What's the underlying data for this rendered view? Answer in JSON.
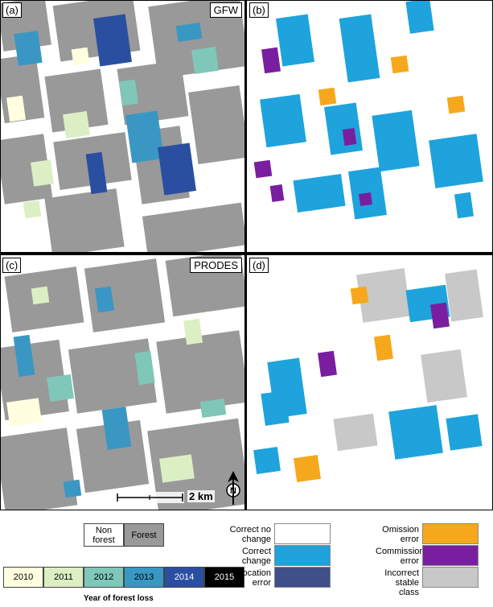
{
  "panels": {
    "a": {
      "label": "(a)",
      "name": "GFW"
    },
    "b": {
      "label": "(b)",
      "name": ""
    },
    "c": {
      "label": "(c)",
      "name": "PRODES"
    },
    "d": {
      "label": "(d)",
      "name": ""
    }
  },
  "scale": {
    "text": "2 km"
  },
  "north": {
    "label": "N"
  },
  "landcover_legend": [
    {
      "label": "Non forest",
      "color": "#ffffff"
    },
    {
      "label": "Forest",
      "color": "#999999"
    }
  ],
  "year_legend": {
    "title": "Year of forest loss",
    "items": [
      {
        "label": "2010",
        "color": "#ffffe0"
      },
      {
        "label": "2011",
        "color": "#dcefc4"
      },
      {
        "label": "2012",
        "color": "#7fc7b8"
      },
      {
        "label": "2013",
        "color": "#3a97c4"
      },
      {
        "label": "2014",
        "color": "#2a4fa0"
      },
      {
        "label": "2015",
        "color": "#000000"
      }
    ]
  },
  "accuracy_legend": [
    {
      "label": "Correct no change",
      "color": "#ffffff"
    },
    {
      "label": "Correct change",
      "color": "#1ea3dc"
    },
    {
      "label": "Allocation error",
      "color": "#3e4f8a"
    },
    {
      "label": "Omission error",
      "color": "#f6a81c"
    },
    {
      "label": "Commission error",
      "color": "#7a1ea0"
    },
    {
      "label": "Incorrect stable class",
      "color": "#c8c8c8"
    }
  ]
}
